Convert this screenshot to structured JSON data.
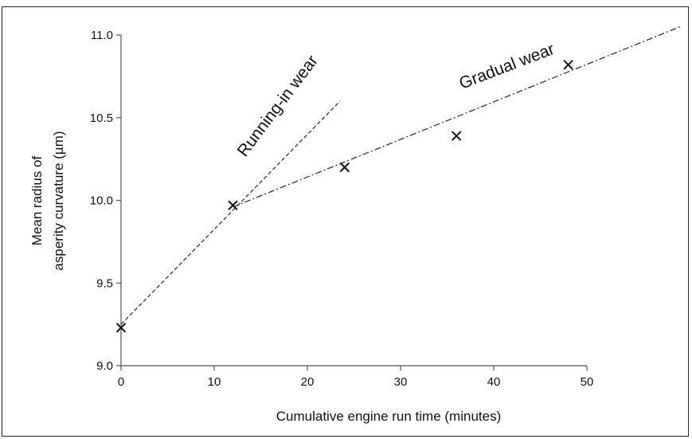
{
  "chart_data": {
    "type": "scatter",
    "xlabel": "Cumulative engine run time (minutes)",
    "ylabel_line1": "Mean radius of",
    "ylabel_line2": "asperity curvature (µm)",
    "xlim": [
      0,
      50
    ],
    "ylim": [
      9.0,
      11.0
    ],
    "x_ticks": [
      "0",
      "10",
      "20",
      "30",
      "40",
      "50"
    ],
    "y_ticks": [
      "9.0",
      "9.5",
      "10.0",
      "10.5",
      "11.0"
    ],
    "grid": false,
    "marker": "x",
    "points": [
      {
        "x": 0,
        "y": 9.23
      },
      {
        "x": 12,
        "y": 9.97
      },
      {
        "x": 24,
        "y": 10.2
      },
      {
        "x": 36,
        "y": 10.39
      },
      {
        "x": 48,
        "y": 10.82
      }
    ],
    "trend_lines": [
      {
        "label": "Running-in wear",
        "style": "dashed",
        "from": [
          0,
          9.25
        ],
        "to": [
          23.5,
          10.6
        ]
      },
      {
        "label": "Gradual wear",
        "style": "dash-dot",
        "from": [
          12,
          9.96
        ],
        "to": [
          60,
          11.05
        ]
      }
    ]
  }
}
